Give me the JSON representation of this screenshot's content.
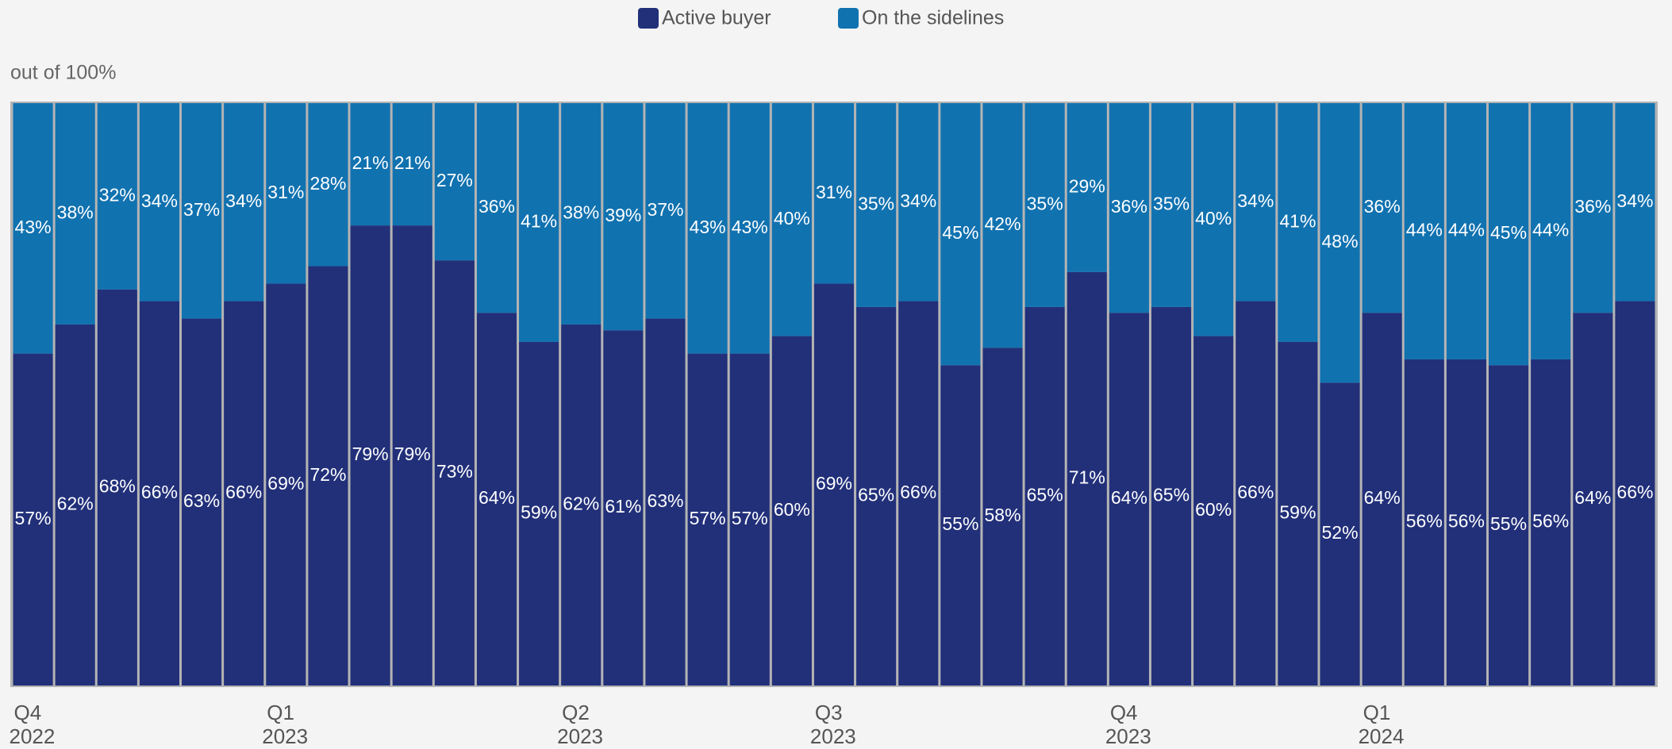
{
  "chart_data": {
    "type": "stacked-bar",
    "subtitle": "out of 100%",
    "categories": [
      "Q4 2022",
      null,
      null,
      null,
      null,
      null,
      "Q1 2023",
      null,
      null,
      null,
      null,
      null,
      null,
      "Q2 2023",
      null,
      null,
      null,
      null,
      null,
      "Q3 2023",
      null,
      null,
      null,
      null,
      null,
      null,
      "Q4 2023",
      null,
      null,
      null,
      null,
      null,
      "Q1 2024",
      null,
      null,
      null,
      null,
      null,
      null
    ],
    "series": [
      {
        "name": "Active buyer",
        "color": "#22307a",
        "values": [
          57,
          62,
          68,
          66,
          63,
          66,
          69,
          72,
          79,
          79,
          73,
          64,
          59,
          62,
          61,
          63,
          57,
          57,
          60,
          69,
          65,
          66,
          55,
          58,
          65,
          71,
          64,
          65,
          60,
          66,
          59,
          52,
          64,
          56,
          56,
          55,
          56,
          64,
          66
        ],
        "value_labels": [
          "57%",
          "62%",
          "68%",
          "66%",
          "63%",
          "66%",
          "69%",
          "72%",
          "79%",
          "79%",
          "73%",
          "64%",
          "59%",
          "62%",
          "61%",
          "63%",
          "57%",
          "57%",
          "60%",
          "69%",
          "65%",
          "66%",
          "55%",
          "58%",
          "65%",
          "71%",
          "64%",
          "65%",
          "60%",
          "66%",
          "59%",
          "52%",
          "64%",
          "56%",
          "56%",
          "55%",
          "56%",
          "64%",
          "66%"
        ]
      },
      {
        "name": "On the sidelines",
        "color": "#1172b0",
        "values": [
          43,
          38,
          32,
          34,
          37,
          34,
          31,
          28,
          21,
          21,
          27,
          36,
          41,
          38,
          39,
          37,
          43,
          43,
          40,
          31,
          35,
          34,
          45,
          42,
          35,
          29,
          36,
          35,
          40,
          34,
          41,
          48,
          36,
          44,
          44,
          45,
          44,
          36,
          34
        ],
        "value_labels": [
          "43%",
          "38%",
          "32%",
          "34%",
          "37%",
          "34%",
          "31%",
          "28%",
          "21%",
          "21%",
          "27%",
          "36%",
          "41%",
          "38%",
          "39%",
          "37%",
          "43%",
          "43%",
          "40%",
          "31%",
          "35%",
          "34%",
          "45%",
          "42%",
          "35%",
          "29%",
          "36%",
          "35%",
          "40%",
          "34%",
          "41%",
          "48%",
          "36%",
          "44%",
          "44%",
          "45%",
          "44%",
          "36%",
          "34%"
        ]
      }
    ],
    "ylim": [
      0,
      100
    ]
  }
}
